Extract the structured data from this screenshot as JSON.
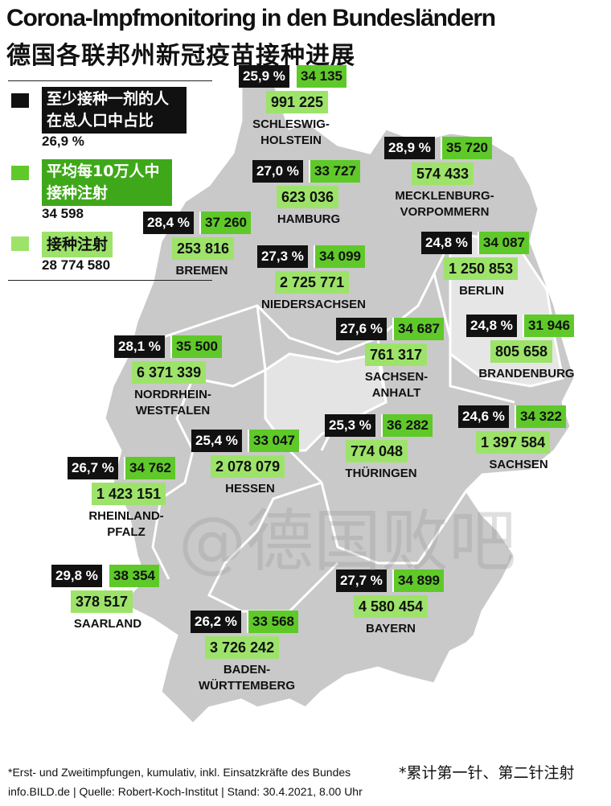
{
  "title": "Corona-Impfmonitoring in den Bundesländern",
  "subtitle": "德国各联邦州新冠疫苗接种进展",
  "colors": {
    "share": "#111111",
    "per100k": "#5fc92a",
    "total": "#9de36a",
    "map": "#c7c7c7",
    "map_border": "#ffffff"
  },
  "legend": {
    "share_label": "至少接种一剂的人 在总人口中占比",
    "share_value": "26,9 %",
    "per100k_label": "平均每10万人中 接种注射",
    "per100k_value": "34 598",
    "total_label": "接种注射",
    "total_value": "28 774 580"
  },
  "states": [
    {
      "name_line1": "SCHLESWIG-",
      "name_line2": "HOLSTEIN",
      "pct": "25,9 %",
      "per100k": "34 135",
      "total": "991 225"
    },
    {
      "name_line1": "MECKLENBURG-",
      "name_line2": "VORPOMMERN",
      "pct": "28,9 %",
      "per100k": "35 720",
      "total": "574 433"
    },
    {
      "name_line1": "HAMBURG",
      "name_line2": "",
      "pct": "27,0 %",
      "per100k": "33 727",
      "total": "623 036"
    },
    {
      "name_line1": "BREMEN",
      "name_line2": "",
      "pct": "28,4 %",
      "per100k": "37 260",
      "total": "253 816"
    },
    {
      "name_line1": "NIEDERSACHSEN",
      "name_line2": "",
      "pct": "27,3 %",
      "per100k": "34 099",
      "total": "2 725 771"
    },
    {
      "name_line1": "BERLIN",
      "name_line2": "",
      "pct": "24,8 %",
      "per100k": "34 087",
      "total": "1 250 853"
    },
    {
      "name_line1": "BRANDENBURG",
      "name_line2": "",
      "pct": "24,8 %",
      "per100k": "31 946",
      "total": "805 658"
    },
    {
      "name_line1": "SACHSEN-",
      "name_line2": "ANHALT",
      "pct": "27,6 %",
      "per100k": "34 687",
      "total": "761 317"
    },
    {
      "name_line1": "NORDRHEIN-",
      "name_line2": "WESTFALEN",
      "pct": "28,1 %",
      "per100k": "35 500",
      "total": "6 371 339"
    },
    {
      "name_line1": "HESSEN",
      "name_line2": "",
      "pct": "25,4 %",
      "per100k": "33 047",
      "total": "2 078 079"
    },
    {
      "name_line1": "THÜRINGEN",
      "name_line2": "",
      "pct": "25,3 %",
      "per100k": "36 282",
      "total": "774 048"
    },
    {
      "name_line1": "SACHSEN",
      "name_line2": "",
      "pct": "24,6 %",
      "per100k": "34 322",
      "total": "1 397 584"
    },
    {
      "name_line1": "RHEINLAND-",
      "name_line2": "PFALZ",
      "pct": "26,7 %",
      "per100k": "34 762",
      "total": "1 423 151"
    },
    {
      "name_line1": "SAARLAND",
      "name_line2": "",
      "pct": "29,8 %",
      "per100k": "38 354",
      "total": "378 517"
    },
    {
      "name_line1": "BADEN-",
      "name_line2": "WÜRTTEMBERG",
      "pct": "26,2 %",
      "per100k": "33 568",
      "total": "3 726 242"
    },
    {
      "name_line1": "BAYERN",
      "name_line2": "",
      "pct": "27,7 %",
      "per100k": "34 899",
      "total": "4 580 454"
    }
  ],
  "watermark": "@德国败吧",
  "footnote": "*Erst- und Zweitimpfungen, kumulativ, inkl. Einsatzkräfte des Bundes",
  "footnote_zh": "*累计第一针、第二针注射",
  "source": "info.BILD.de | Quelle: Robert-Koch-Institut | Stand: 30.4.2021, 8.00 Uhr"
}
